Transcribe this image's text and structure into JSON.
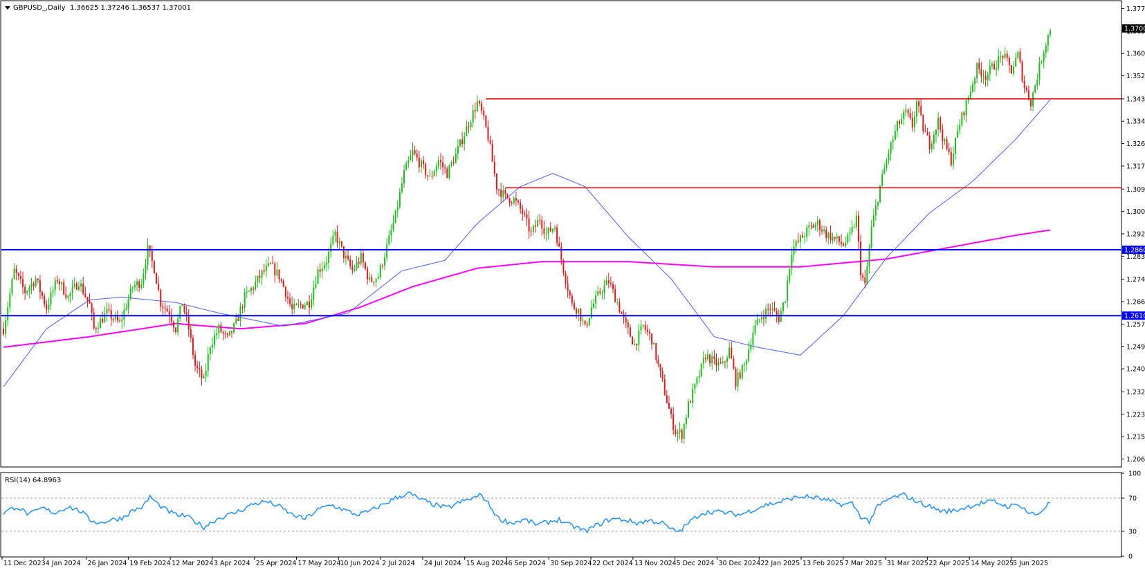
{
  "chart_data": {
    "type": "candlestick",
    "symbol_label": "GBPUSD_,Daily",
    "ohlc_header": [
      "1.36625",
      "1.37246",
      "1.36537",
      "1.37001"
    ],
    "price_axis": {
      "ylim": [
        1.2038,
        1.3803
      ],
      "ticks": [
        "1.37755",
        "1.36905",
        "1.36055",
        "1.35205",
        "1.34330",
        "1.33480",
        "1.32630",
        "1.31780",
        "1.30905",
        "1.30055",
        "1.29205",
        "1.28355",
        "1.27480",
        "1.26630",
        "1.25780",
        "1.24930",
        "1.24080",
        "1.23205",
        "1.22355",
        "1.21505",
        "1.20655"
      ],
      "last_price_label": "1.37001"
    },
    "time_axis": {
      "labels": [
        "11 Dec 2023",
        "4 Jan 2024",
        "26 Jan 2024",
        "19 Feb 2024",
        "12 Mar 2024",
        "3 Apr 2024",
        "25 Apr 2024",
        "17 May 2024",
        "10 Jun 2024",
        "2 Jul 2024",
        "24 Jul 2024",
        "15 Aug 2024",
        "6 Sep 2024",
        "30 Sep 2024",
        "22 Oct 2024",
        "13 Nov 2024",
        "5 Dec 2024",
        "30 Dec 2024",
        "22 Jan 2025",
        "13 Feb 2025",
        "7 Mar 2025",
        "31 Mar 2025",
        "22 Apr 2025",
        "14 May 2025",
        "5 Jun 2025"
      ]
    },
    "price_path": [
      [
        0,
        1.256
      ],
      [
        5,
        1.278
      ],
      [
        10,
        1.27
      ],
      [
        15,
        1.275
      ],
      [
        20,
        1.264
      ],
      [
        25,
        1.275
      ],
      [
        30,
        1.268
      ],
      [
        35,
        1.274
      ],
      [
        40,
        1.265
      ],
      [
        42,
        1.256
      ],
      [
        48,
        1.262
      ],
      [
        54,
        1.258
      ],
      [
        60,
        1.272
      ],
      [
        64,
        1.274
      ],
      [
        67,
        1.286
      ],
      [
        70,
        1.279
      ],
      [
        73,
        1.266
      ],
      [
        77,
        1.262
      ],
      [
        80,
        1.256
      ],
      [
        83,
        1.266
      ],
      [
        86,
        1.256
      ],
      [
        89,
        1.242
      ],
      [
        93,
        1.236
      ],
      [
        96,
        1.25
      ],
      [
        100,
        1.256
      ],
      [
        104,
        1.252
      ],
      [
        108,
        1.258
      ],
      [
        112,
        1.268
      ],
      [
        116,
        1.272
      ],
      [
        120,
        1.277
      ],
      [
        124,
        1.28
      ],
      [
        128,
        1.276
      ],
      [
        131,
        1.27
      ],
      [
        134,
        1.263
      ],
      [
        138,
        1.265
      ],
      [
        142,
        1.266
      ],
      [
        146,
        1.278
      ],
      [
        150,
        1.282
      ],
      [
        154,
        1.292
      ],
      [
        158,
        1.284
      ],
      [
        162,
        1.278
      ],
      [
        166,
        1.283
      ],
      [
        170,
        1.274
      ],
      [
        174,
        1.276
      ],
      [
        178,
        1.287
      ],
      [
        182,
        1.299
      ],
      [
        186,
        1.315
      ],
      [
        190,
        1.323
      ],
      [
        194,
        1.318
      ],
      [
        198,
        1.313
      ],
      [
        202,
        1.32
      ],
      [
        206,
        1.315
      ],
      [
        210,
        1.322
      ],
      [
        214,
        1.33
      ],
      [
        218,
        1.338
      ],
      [
        220,
        1.342
      ],
      [
        222,
        1.338
      ],
      [
        225,
        1.329
      ],
      [
        229,
        1.31
      ],
      [
        233,
        1.306
      ],
      [
        237,
        1.305
      ],
      [
        241,
        1.3
      ],
      [
        245,
        1.292
      ],
      [
        249,
        1.298
      ],
      [
        252,
        1.292
      ],
      [
        256,
        1.295
      ],
      [
        258,
        1.286
      ],
      [
        261,
        1.275
      ],
      [
        264,
        1.265
      ],
      [
        267,
        1.263
      ],
      [
        270,
        1.256
      ],
      [
        273,
        1.264
      ],
      [
        277,
        1.27
      ],
      [
        281,
        1.274
      ],
      [
        285,
        1.266
      ],
      [
        289,
        1.257
      ],
      [
        293,
        1.25
      ],
      [
        297,
        1.257
      ],
      [
        301,
        1.252
      ],
      [
        304,
        1.242
      ],
      [
        307,
        1.232
      ],
      [
        310,
        1.222
      ],
      [
        312,
        1.217
      ],
      [
        315,
        1.216
      ],
      [
        318,
        1.227
      ],
      [
        322,
        1.236
      ],
      [
        326,
        1.246
      ],
      [
        330,
        1.243
      ],
      [
        334,
        1.242
      ],
      [
        337,
        1.248
      ],
      [
        340,
        1.236
      ],
      [
        344,
        1.242
      ],
      [
        348,
        1.255
      ],
      [
        352,
        1.261
      ],
      [
        356,
        1.264
      ],
      [
        360,
        1.26
      ],
      [
        363,
        1.268
      ],
      [
        366,
        1.286
      ],
      [
        370,
        1.29
      ],
      [
        374,
        1.294
      ],
      [
        378,
        1.296
      ],
      [
        382,
        1.292
      ],
      [
        386,
        1.29
      ],
      [
        390,
        1.288
      ],
      [
        393,
        1.291
      ],
      [
        396,
        1.298
      ],
      [
        398,
        1.278
      ],
      [
        400,
        1.272
      ],
      [
        403,
        1.294
      ],
      [
        407,
        1.31
      ],
      [
        411,
        1.323
      ],
      [
        415,
        1.333
      ],
      [
        419,
        1.338
      ],
      [
        422,
        1.333
      ],
      [
        424,
        1.342
      ],
      [
        427,
        1.332
      ],
      [
        430,
        1.326
      ],
      [
        434,
        1.335
      ],
      [
        437,
        1.326
      ],
      [
        440,
        1.32
      ],
      [
        444,
        1.334
      ],
      [
        448,
        1.344
      ],
      [
        452,
        1.355
      ],
      [
        456,
        1.352
      ],
      [
        460,
        1.356
      ],
      [
        464,
        1.36
      ],
      [
        468,
        1.354
      ],
      [
        471,
        1.36
      ],
      [
        474,
        1.348
      ],
      [
        477,
        1.342
      ],
      [
        480,
        1.352
      ],
      [
        483,
        1.362
      ],
      [
        486,
        1.37
      ]
    ],
    "overlays": [
      {
        "kind": "hline",
        "value": 1.3433,
        "color": "#e00000",
        "from_index": 224
      },
      {
        "kind": "hline",
        "value": 1.3095,
        "color": "#e00000",
        "from_index": 233
      },
      {
        "kind": "hline",
        "value": 1.286,
        "color": "#0000ff",
        "label": "1.28600"
      },
      {
        "kind": "hline",
        "value": 1.261,
        "color": "#0000ff",
        "label": "1.26100"
      }
    ],
    "moving_averages": [
      {
        "color": "#ff00ff",
        "points": [
          [
            0,
            1.249
          ],
          [
            40,
            1.253
          ],
          [
            80,
            1.258
          ],
          [
            110,
            1.256
          ],
          [
            140,
            1.258
          ],
          [
            165,
            1.264
          ],
          [
            190,
            1.272
          ],
          [
            220,
            1.279
          ],
          [
            250,
            1.2815
          ],
          [
            290,
            1.2815
          ],
          [
            330,
            1.2795
          ],
          [
            370,
            1.2795
          ],
          [
            410,
            1.2825
          ],
          [
            440,
            1.287
          ],
          [
            470,
            1.2915
          ],
          [
            486,
            1.2935
          ]
        ]
      },
      {
        "color": "#4a5cff",
        "points": [
          [
            0,
            1.234
          ],
          [
            20,
            1.256
          ],
          [
            40,
            1.267
          ],
          [
            55,
            1.268
          ],
          [
            80,
            1.266
          ],
          [
            100,
            1.262
          ],
          [
            130,
            1.257
          ],
          [
            160,
            1.262
          ],
          [
            185,
            1.278
          ],
          [
            205,
            1.282
          ],
          [
            220,
            1.296
          ],
          [
            240,
            1.31
          ],
          [
            255,
            1.315
          ],
          [
            270,
            1.31
          ],
          [
            290,
            1.291
          ],
          [
            310,
            1.275
          ],
          [
            330,
            1.253
          ],
          [
            350,
            1.249
          ],
          [
            370,
            1.246
          ],
          [
            390,
            1.261
          ],
          [
            410,
            1.283
          ],
          [
            430,
            1.3
          ],
          [
            450,
            1.312
          ],
          [
            470,
            1.328
          ],
          [
            486,
            1.343
          ]
        ]
      }
    ],
    "rsi": {
      "label": "RSI(14) 64.8963",
      "ylim": [
        0,
        100
      ],
      "ticks": [
        "100",
        "70",
        "30",
        "0"
      ],
      "levels": [
        70,
        30
      ],
      "color": "#1e90ff",
      "path": [
        [
          0,
          52
        ],
        [
          6,
          60
        ],
        [
          12,
          50
        ],
        [
          18,
          58
        ],
        [
          24,
          52
        ],
        [
          30,
          60
        ],
        [
          36,
          54
        ],
        [
          40,
          44
        ],
        [
          45,
          40
        ],
        [
          50,
          44
        ],
        [
          55,
          46
        ],
        [
          60,
          55
        ],
        [
          65,
          60
        ],
        [
          68,
          72
        ],
        [
          72,
          62
        ],
        [
          76,
          55
        ],
        [
          80,
          50
        ],
        [
          85,
          48
        ],
        [
          89,
          42
        ],
        [
          93,
          35
        ],
        [
          96,
          40
        ],
        [
          100,
          46
        ],
        [
          105,
          50
        ],
        [
          110,
          55
        ],
        [
          116,
          63
        ],
        [
          122,
          66
        ],
        [
          128,
          60
        ],
        [
          134,
          50
        ],
        [
          140,
          45
        ],
        [
          146,
          56
        ],
        [
          152,
          62
        ],
        [
          158,
          56
        ],
        [
          164,
          50
        ],
        [
          170,
          54
        ],
        [
          176,
          62
        ],
        [
          182,
          70
        ],
        [
          188,
          76
        ],
        [
          194,
          68
        ],
        [
          200,
          62
        ],
        [
          206,
          58
        ],
        [
          212,
          65
        ],
        [
          218,
          70
        ],
        [
          222,
          74
        ],
        [
          226,
          60
        ],
        [
          230,
          45
        ],
        [
          236,
          40
        ],
        [
          242,
          44
        ],
        [
          248,
          38
        ],
        [
          254,
          42
        ],
        [
          258,
          44
        ],
        [
          262,
          38
        ],
        [
          266,
          35
        ],
        [
          270,
          30
        ],
        [
          276,
          38
        ],
        [
          282,
          45
        ],
        [
          288,
          44
        ],
        [
          294,
          40
        ],
        [
          300,
          43
        ],
        [
          306,
          40
        ],
        [
          310,
          32
        ],
        [
          314,
          30
        ],
        [
          318,
          40
        ],
        [
          324,
          52
        ],
        [
          330,
          54
        ],
        [
          336,
          52
        ],
        [
          342,
          50
        ],
        [
          348,
          56
        ],
        [
          354,
          62
        ],
        [
          360,
          65
        ],
        [
          366,
          70
        ],
        [
          372,
          72
        ],
        [
          378,
          70
        ],
        [
          384,
          66
        ],
        [
          390,
          62
        ],
        [
          394,
          64
        ],
        [
          398,
          48
        ],
        [
          402,
          42
        ],
        [
          406,
          60
        ],
        [
          412,
          70
        ],
        [
          418,
          74
        ],
        [
          424,
          66
        ],
        [
          430,
          60
        ],
        [
          436,
          54
        ],
        [
          442,
          55
        ],
        [
          448,
          60
        ],
        [
          454,
          64
        ],
        [
          460,
          66
        ],
        [
          466,
          60
        ],
        [
          472,
          62
        ],
        [
          476,
          52
        ],
        [
          480,
          50
        ],
        [
          484,
          60
        ],
        [
          486,
          65
        ]
      ]
    }
  }
}
